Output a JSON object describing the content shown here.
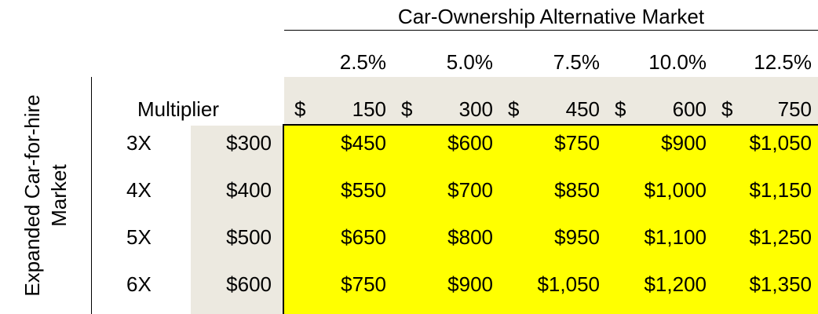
{
  "chart_data": {
    "type": "table",
    "title": "Car-Ownership Alternative Market",
    "column_percents": [
      "2.5%",
      "5.0%",
      "7.5%",
      "10.0%",
      "12.5%"
    ],
    "column_header_label": "Multiplier",
    "column_dollar_sign": "$",
    "column_values": [
      "150",
      "300",
      "450",
      "600",
      "750"
    ],
    "row_axis_label_line1": "Expanded Car-for-hire",
    "row_axis_label_line2": "Market",
    "row_multipliers": [
      "3X",
      "4X",
      "5X",
      "6X"
    ],
    "row_values": [
      "$300",
      "$400",
      "$500",
      "$600"
    ],
    "cells": [
      [
        "$450",
        "$600",
        "$750",
        "$900",
        "$1,050"
      ],
      [
        "$550",
        "$700",
        "$850",
        "$1,000",
        "$1,150"
      ],
      [
        "$650",
        "$800",
        "$950",
        "$1,100",
        "$1,250"
      ],
      [
        "$750",
        "$900",
        "$1,050",
        "$1,200",
        "$1,350"
      ]
    ],
    "colors": {
      "header_fill": "#ece9e0",
      "body_fill": "#ffff00"
    }
  }
}
